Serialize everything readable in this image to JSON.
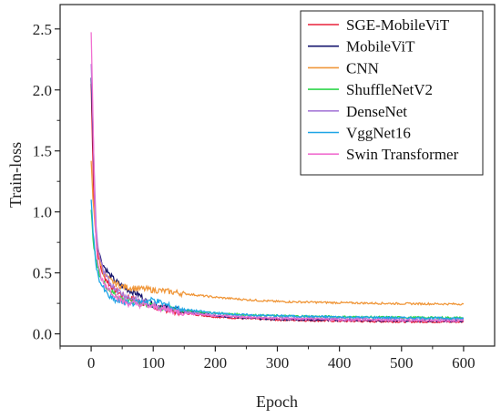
{
  "chart_data": {
    "type": "line",
    "title": "",
    "xlabel": "Epoch",
    "ylabel": "Train-loss",
    "xlim": [
      -50,
      650
    ],
    "ylim": [
      -0.1,
      2.7
    ],
    "xticks": [
      0,
      100,
      200,
      300,
      400,
      500,
      600
    ],
    "yticks": [
      0.0,
      0.5,
      1.0,
      1.5,
      2.0,
      2.5
    ],
    "grid": false,
    "legend_position": "top-right",
    "series": [
      {
        "name": "SGE-MobileViT",
        "color": "#e8203a",
        "points": [
          [
            0,
            2.05
          ],
          [
            2,
            1.6
          ],
          [
            4,
            1.2
          ],
          [
            6,
            0.95
          ],
          [
            8,
            0.78
          ],
          [
            10,
            0.68
          ],
          [
            15,
            0.55
          ],
          [
            20,
            0.48
          ],
          [
            30,
            0.4
          ],
          [
            40,
            0.35
          ],
          [
            50,
            0.32
          ],
          [
            60,
            0.3
          ],
          [
            70,
            0.28
          ],
          [
            80,
            0.26
          ],
          [
            90,
            0.25
          ],
          [
            100,
            0.22
          ],
          [
            120,
            0.2
          ],
          [
            150,
            0.17
          ],
          [
            200,
            0.14
          ],
          [
            250,
            0.125
          ],
          [
            300,
            0.115
          ],
          [
            400,
            0.105
          ],
          [
            500,
            0.1
          ],
          [
            600,
            0.098
          ]
        ]
      },
      {
        "name": "MobileViT",
        "color": "#14146e",
        "points": [
          [
            0,
            2.12
          ],
          [
            2,
            1.8
          ],
          [
            4,
            1.4
          ],
          [
            6,
            1.05
          ],
          [
            8,
            0.85
          ],
          [
            10,
            0.74
          ],
          [
            15,
            0.62
          ],
          [
            20,
            0.56
          ],
          [
            30,
            0.48
          ],
          [
            40,
            0.43
          ],
          [
            50,
            0.39
          ],
          [
            60,
            0.36
          ],
          [
            70,
            0.34
          ],
          [
            80,
            0.31
          ],
          [
            90,
            0.26
          ],
          [
            100,
            0.24
          ],
          [
            120,
            0.22
          ],
          [
            150,
            0.18
          ],
          [
            200,
            0.15
          ],
          [
            250,
            0.13
          ],
          [
            300,
            0.12
          ],
          [
            400,
            0.112
          ],
          [
            500,
            0.108
          ],
          [
            600,
            0.105
          ]
        ]
      },
      {
        "name": "CNN",
        "color": "#f0973a",
        "points": [
          [
            0,
            1.4
          ],
          [
            3,
            1.1
          ],
          [
            6,
            0.9
          ],
          [
            10,
            0.72
          ],
          [
            15,
            0.58
          ],
          [
            20,
            0.5
          ],
          [
            30,
            0.44
          ],
          [
            40,
            0.41
          ],
          [
            50,
            0.39
          ],
          [
            60,
            0.38
          ],
          [
            80,
            0.37
          ],
          [
            100,
            0.36
          ],
          [
            120,
            0.35
          ],
          [
            150,
            0.33
          ],
          [
            200,
            0.3
          ],
          [
            250,
            0.28
          ],
          [
            300,
            0.265
          ],
          [
            400,
            0.255
          ],
          [
            500,
            0.248
          ],
          [
            600,
            0.244
          ]
        ]
      },
      {
        "name": "ShuffleNetV2",
        "color": "#2fd64b",
        "points": [
          [
            0,
            1.0
          ],
          [
            3,
            0.8
          ],
          [
            6,
            0.65
          ],
          [
            10,
            0.55
          ],
          [
            15,
            0.47
          ],
          [
            20,
            0.42
          ],
          [
            30,
            0.36
          ],
          [
            40,
            0.32
          ],
          [
            50,
            0.29
          ],
          [
            60,
            0.27
          ],
          [
            80,
            0.25
          ],
          [
            100,
            0.23
          ],
          [
            120,
            0.21
          ],
          [
            150,
            0.19
          ],
          [
            200,
            0.17
          ],
          [
            250,
            0.155
          ],
          [
            300,
            0.148
          ],
          [
            400,
            0.14
          ],
          [
            500,
            0.135
          ],
          [
            600,
            0.132
          ]
        ]
      },
      {
        "name": "DenseNet",
        "color": "#a87ad8",
        "points": [
          [
            0,
            2.2
          ],
          [
            2,
            1.9
          ],
          [
            4,
            1.5
          ],
          [
            6,
            1.15
          ],
          [
            8,
            0.9
          ],
          [
            10,
            0.75
          ],
          [
            15,
            0.6
          ],
          [
            20,
            0.5
          ],
          [
            30,
            0.42
          ],
          [
            40,
            0.37
          ],
          [
            50,
            0.33
          ],
          [
            60,
            0.3
          ],
          [
            80,
            0.27
          ],
          [
            100,
            0.24
          ],
          [
            120,
            0.21
          ],
          [
            150,
            0.18
          ],
          [
            200,
            0.155
          ],
          [
            250,
            0.14
          ],
          [
            300,
            0.132
          ],
          [
            400,
            0.125
          ],
          [
            500,
            0.12
          ],
          [
            600,
            0.118
          ]
        ]
      },
      {
        "name": "VggNet16",
        "color": "#1ea5e6",
        "points": [
          [
            0,
            1.1
          ],
          [
            3,
            0.85
          ],
          [
            6,
            0.65
          ],
          [
            10,
            0.5
          ],
          [
            15,
            0.42
          ],
          [
            20,
            0.37
          ],
          [
            25,
            0.33
          ],
          [
            30,
            0.3
          ],
          [
            40,
            0.27
          ],
          [
            50,
            0.26
          ],
          [
            60,
            0.25
          ],
          [
            80,
            0.26
          ],
          [
            100,
            0.28
          ],
          [
            110,
            0.26
          ],
          [
            130,
            0.22
          ],
          [
            150,
            0.2
          ],
          [
            200,
            0.17
          ],
          [
            250,
            0.155
          ],
          [
            300,
            0.148
          ],
          [
            400,
            0.138
          ],
          [
            500,
            0.132
          ],
          [
            600,
            0.128
          ]
        ]
      },
      {
        "name": "Swin Transformer",
        "color": "#f16fd0",
        "points": [
          [
            0,
            2.45
          ],
          [
            2,
            2.0
          ],
          [
            4,
            1.5
          ],
          [
            6,
            1.0
          ],
          [
            8,
            0.75
          ],
          [
            10,
            0.6
          ],
          [
            15,
            0.48
          ],
          [
            20,
            0.42
          ],
          [
            30,
            0.36
          ],
          [
            40,
            0.31
          ],
          [
            50,
            0.27
          ],
          [
            60,
            0.25
          ],
          [
            80,
            0.24
          ],
          [
            100,
            0.22
          ],
          [
            120,
            0.2
          ],
          [
            150,
            0.17
          ],
          [
            200,
            0.15
          ],
          [
            250,
            0.135
          ],
          [
            300,
            0.125
          ],
          [
            400,
            0.115
          ],
          [
            500,
            0.11
          ],
          [
            600,
            0.106
          ]
        ]
      }
    ]
  }
}
